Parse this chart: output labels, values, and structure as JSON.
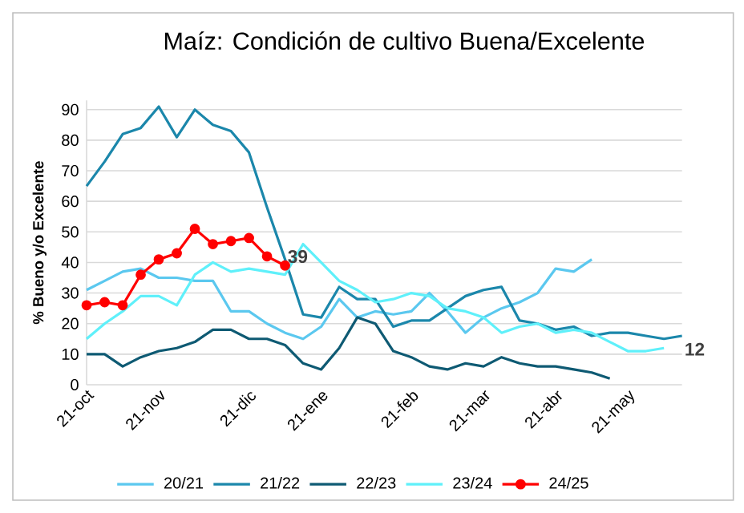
{
  "chart_data": {
    "type": "line",
    "title": "Maíz: Condición de cultivo Buena/Excelente",
    "ylabel": "% Bueno y/o Excelente",
    "categories": [
      "21-oct",
      null,
      null,
      null,
      "21-nov",
      null,
      null,
      null,
      null,
      "21-dic",
      null,
      null,
      null,
      "21-ene",
      null,
      null,
      null,
      null,
      "21-feb",
      null,
      null,
      null,
      "21-mar",
      null,
      null,
      null,
      "21-abr",
      null,
      null,
      null,
      "21-may",
      null,
      null,
      null
    ],
    "series": [
      {
        "name": "20/21",
        "color": "#5bc8ef",
        "values": [
          31,
          34,
          37,
          38,
          35,
          35,
          34,
          34,
          24,
          24,
          20,
          17,
          15,
          19,
          28,
          22,
          24,
          23,
          24,
          30,
          24,
          17,
          22,
          25,
          27,
          30,
          38,
          37,
          41,
          null,
          null,
          null,
          null,
          null
        ]
      },
      {
        "name": "21/22",
        "color": "#1b87ab",
        "values": [
          65,
          73,
          82,
          84,
          91,
          81,
          90,
          85,
          83,
          76,
          58,
          41,
          23,
          22,
          32,
          28,
          28,
          19,
          21,
          21,
          25,
          29,
          31,
          32,
          21,
          20,
          18,
          19,
          16,
          17,
          17,
          16,
          15,
          16
        ]
      },
      {
        "name": "22/23",
        "color": "#0e5a73",
        "values": [
          10,
          10,
          6,
          9,
          11,
          12,
          14,
          18,
          18,
          15,
          15,
          13,
          7,
          5,
          12,
          22,
          20,
          11,
          9,
          6,
          5,
          7,
          6,
          9,
          7,
          6,
          6,
          5,
          4,
          2,
          null,
          null,
          null,
          null
        ]
      },
      {
        "name": "23/24",
        "color": "#5ff0fa",
        "values": [
          15,
          20,
          24,
          29,
          29,
          26,
          36,
          40,
          37,
          38,
          37,
          36,
          46,
          40,
          34,
          31,
          27,
          28,
          30,
          29,
          25,
          24,
          22,
          17,
          19,
          20,
          17,
          18,
          17,
          14,
          11,
          11,
          12,
          null
        ]
      },
      {
        "name": "24/25",
        "color": "#ff0000",
        "marker": "circle",
        "values": [
          26,
          27,
          26,
          36,
          41,
          43,
          51,
          46,
          47,
          48,
          42,
          39,
          null,
          null,
          null,
          null,
          null,
          null,
          null,
          null,
          null,
          null,
          null,
          null,
          null,
          null,
          null,
          null,
          null,
          null,
          null,
          null,
          null,
          null
        ]
      }
    ],
    "ylim": [
      0,
      93
    ],
    "yticks": [
      0,
      10,
      20,
      30,
      40,
      50,
      60,
      70,
      80,
      90
    ],
    "grid": "y",
    "legend": "bottom",
    "annotations": [
      {
        "text": "39",
        "y": 39
      },
      "12"
    ]
  }
}
